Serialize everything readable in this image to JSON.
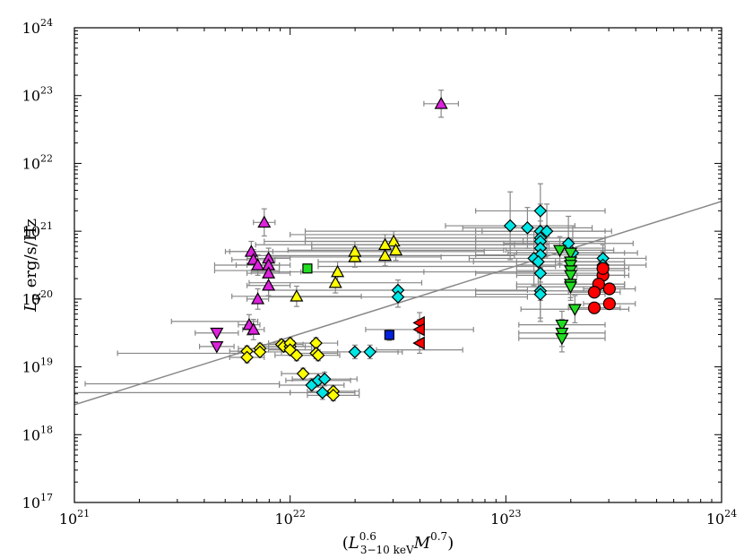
{
  "chart_data": {
    "type": "scatter",
    "title": "",
    "xlabel": "(L_{3-10 keV}^{0.6} M^{0.7})",
    "ylabel": "L_R erg/s/Hz",
    "x_scale": "log",
    "y_scale": "log",
    "xlim": [
      21,
      24
    ],
    "ylim": [
      17,
      24
    ],
    "x_ticks": [
      {
        "base": "10",
        "exp": "21",
        "value": 21
      },
      {
        "base": "10",
        "exp": "22",
        "value": 22
      },
      {
        "base": "10",
        "exp": "23",
        "value": 23
      },
      {
        "base": "10",
        "exp": "24",
        "value": 24
      }
    ],
    "y_ticks": [
      {
        "base": "10",
        "exp": "17",
        "value": 17
      },
      {
        "base": "10",
        "exp": "18",
        "value": 18
      },
      {
        "base": "10",
        "exp": "19",
        "value": 19
      },
      {
        "base": "10",
        "exp": "20",
        "value": 20
      },
      {
        "base": "10",
        "exp": "21",
        "value": 21
      },
      {
        "base": "10",
        "exp": "22",
        "value": 22
      },
      {
        "base": "10",
        "exp": "23",
        "value": 23
      },
      {
        "base": "10",
        "exp": "24",
        "value": 24
      }
    ],
    "axis_titles": {
      "x": {
        "open": "(",
        "L": "L",
        "sup": "0.6",
        "sub": "3−10 keV",
        "M": "M",
        "msup": "0.7",
        "close": ")"
      },
      "y": {
        "L": "L",
        "sub": "R",
        "unit": " erg/s/Hz"
      }
    },
    "fit_line": {
      "x": [
        21,
        24
      ],
      "y": [
        18.44,
        21.44
      ],
      "color": "#888888"
    },
    "series": [
      {
        "name": "magenta-up",
        "marker": "triangle-up",
        "color": "#dd22dd",
        "points": [
          {
            "x": 22.7,
            "y": 22.88,
            "xerr": 0.08,
            "yerr": 0.2
          },
          {
            "x": 21.88,
            "y": 21.13,
            "xerr": 0.05,
            "yerr": 0.2
          },
          {
            "x": 21.82,
            "y": 20.7,
            "xerr": 0.1,
            "yerr": 0.15
          },
          {
            "x": 21.83,
            "y": 20.58,
            "xerr": 0.1,
            "yerr": 0.15
          },
          {
            "x": 21.85,
            "y": 20.5,
            "xerr": 0.1,
            "yerr": 0.15
          },
          {
            "x": 21.9,
            "y": 20.6,
            "xerr": 0.1,
            "yerr": 0.15
          },
          {
            "x": 21.9,
            "y": 20.5,
            "xerr": 0.1,
            "yerr": 0.15
          },
          {
            "x": 21.9,
            "y": 20.38,
            "xerr": 0.1,
            "yerr": 0.15
          },
          {
            "x": 21.9,
            "y": 20.2,
            "xerr": 0.1,
            "yerr": 0.15
          },
          {
            "x": 21.85,
            "y": 20.0,
            "xerr": 0.05,
            "yerr": 0.15
          },
          {
            "x": 21.81,
            "y": 19.62,
            "xerr": 0.05,
            "yerr": 0.15
          },
          {
            "x": 21.83,
            "y": 19.55,
            "xerr": 0.05,
            "yerr": 0.15
          }
        ]
      },
      {
        "name": "magenta-down",
        "marker": "triangle-down",
        "color": "#dd22dd",
        "points": [
          {
            "x": 21.66,
            "y": 19.5,
            "xerr": 0.1,
            "yerr": 0.0
          },
          {
            "x": 21.66,
            "y": 19.3,
            "xerr": 0.08,
            "yerr": 0.0
          }
        ]
      },
      {
        "name": "yellow-up",
        "marker": "triangle-up",
        "color": "#ffff00",
        "points": [
          {
            "x": 22.48,
            "y": 20.85,
            "xerr": 0.6,
            "yerr": 0.15
          },
          {
            "x": 22.44,
            "y": 20.8,
            "xerr": 0.6,
            "yerr": 0.15
          },
          {
            "x": 22.49,
            "y": 20.72,
            "xerr": 0.5,
            "yerr": 0.15
          },
          {
            "x": 22.44,
            "y": 20.64,
            "xerr": 0.6,
            "yerr": 0.15
          },
          {
            "x": 22.3,
            "y": 20.62,
            "xerr": 0.4,
            "yerr": 0.15
          },
          {
            "x": 22.22,
            "y": 20.4,
            "xerr": 0.4,
            "yerr": 0.15
          },
          {
            "x": 22.21,
            "y": 20.24,
            "xerr": 0.4,
            "yerr": 0.15
          },
          {
            "x": 22.03,
            "y": 20.04,
            "xerr": 0.3,
            "yerr": 0.15
          },
          {
            "x": 22.3,
            "y": 20.7,
            "xerr": 0.6,
            "yerr": 0.15
          }
        ]
      },
      {
        "name": "yellow-diamond",
        "marker": "diamond",
        "color": "#ffff00",
        "points": [
          {
            "x": 21.8,
            "y": 19.23,
            "xerr": 0.08,
            "yerr": 0.08
          },
          {
            "x": 21.8,
            "y": 19.14,
            "xerr": 0.08,
            "yerr": 0.08
          },
          {
            "x": 21.86,
            "y": 19.27,
            "xerr": 0.1,
            "yerr": 0.08
          },
          {
            "x": 21.86,
            "y": 19.22,
            "xerr": 0.1,
            "yerr": 0.08
          },
          {
            "x": 21.96,
            "y": 19.33,
            "xerr": 0.1,
            "yerr": 0.08
          },
          {
            "x": 21.97,
            "y": 19.3,
            "xerr": 0.1,
            "yerr": 0.08
          },
          {
            "x": 22.0,
            "y": 19.3,
            "xerr": 0.1,
            "yerr": 0.08
          },
          {
            "x": 22.0,
            "y": 19.35,
            "xerr": 0.1,
            "yerr": 0.08
          },
          {
            "x": 22.0,
            "y": 19.25,
            "xerr": 0.1,
            "yerr": 0.08
          },
          {
            "x": 22.03,
            "y": 19.17,
            "xerr": 0.1,
            "yerr": 0.08
          },
          {
            "x": 22.06,
            "y": 18.9,
            "xerr": 0.1,
            "yerr": 0.08
          },
          {
            "x": 22.12,
            "y": 19.35,
            "xerr": 0.1,
            "yerr": 0.08
          },
          {
            "x": 22.12,
            "y": 19.2,
            "xerr": 0.1,
            "yerr": 0.08
          },
          {
            "x": 22.13,
            "y": 19.17,
            "xerr": 0.1,
            "yerr": 0.08
          },
          {
            "x": 22.2,
            "y": 18.64,
            "xerr": 0.12,
            "yerr": 0.08
          },
          {
            "x": 22.2,
            "y": 18.58,
            "xerr": 0.12,
            "yerr": 0.08
          }
        ]
      },
      {
        "name": "cyan-diamond",
        "marker": "diamond",
        "color": "#00e5e5",
        "points": [
          {
            "x": 23.02,
            "y": 21.08,
            "xerr": 0.3,
            "yerr": 0.5
          },
          {
            "x": 23.1,
            "y": 21.05,
            "xerr": 0.3,
            "yerr": 0.3
          },
          {
            "x": 23.16,
            "y": 21.3,
            "xerr": 0.3,
            "yerr": 0.4
          },
          {
            "x": 23.16,
            "y": 21.0,
            "xerr": 0.3,
            "yerr": 0.4
          },
          {
            "x": 23.16,
            "y": 20.9,
            "xerr": 0.3,
            "yerr": 0.4
          },
          {
            "x": 23.16,
            "y": 20.85,
            "xerr": 0.3,
            "yerr": 0.4
          },
          {
            "x": 23.16,
            "y": 20.75,
            "xerr": 0.3,
            "yerr": 0.4
          },
          {
            "x": 23.16,
            "y": 20.65,
            "xerr": 0.3,
            "yerr": 0.4
          },
          {
            "x": 23.13,
            "y": 20.6,
            "xerr": 0.3,
            "yerr": 0.4
          },
          {
            "x": 23.15,
            "y": 20.55,
            "xerr": 0.3,
            "yerr": 0.4
          },
          {
            "x": 23.16,
            "y": 20.38,
            "xerr": 0.3,
            "yerr": 0.4
          },
          {
            "x": 23.16,
            "y": 20.12,
            "xerr": 0.3,
            "yerr": 0.4
          },
          {
            "x": 23.16,
            "y": 20.07,
            "xerr": 0.3,
            "yerr": 0.4
          },
          {
            "x": 23.19,
            "y": 21.0,
            "xerr": 0.3,
            "yerr": 0.4
          },
          {
            "x": 23.29,
            "y": 20.82,
            "xerr": 0.3,
            "yerr": 0.4
          },
          {
            "x": 23.31,
            "y": 20.68,
            "xerr": 0.3,
            "yerr": 0.4
          },
          {
            "x": 23.45,
            "y": 20.6,
            "xerr": 0.2,
            "yerr": 0.2
          },
          {
            "x": 23.45,
            "y": 20.5,
            "xerr": 0.2,
            "yerr": 0.2
          },
          {
            "x": 22.5,
            "y": 20.13,
            "xerr": 0.6,
            "yerr": 0.15
          },
          {
            "x": 22.5,
            "y": 20.03,
            "xerr": 0.6,
            "yerr": 0.15
          },
          {
            "x": 22.3,
            "y": 19.22,
            "xerr": 0.2,
            "yerr": 0.1
          },
          {
            "x": 22.37,
            "y": 19.22,
            "xerr": 0.15,
            "yerr": 0.1
          },
          {
            "x": 22.1,
            "y": 18.73,
            "xerr": 0.15,
            "yerr": 0.1
          },
          {
            "x": 22.13,
            "y": 18.8,
            "xerr": 0.15,
            "yerr": 0.1
          },
          {
            "x": 22.15,
            "y": 18.62,
            "xerr": 0.15,
            "yerr": 0.1
          },
          {
            "x": 22.16,
            "y": 18.82,
            "xerr": 0.15,
            "yerr": 0.1
          }
        ]
      },
      {
        "name": "green-down",
        "marker": "triangle-down",
        "color": "#22dd22",
        "points": [
          {
            "x": 23.25,
            "y": 20.72,
            "xerr": 0.25,
            "yerr": 0.2
          },
          {
            "x": 23.3,
            "y": 20.68,
            "xerr": 0.25,
            "yerr": 0.2
          },
          {
            "x": 23.3,
            "y": 20.55,
            "xerr": 0.25,
            "yerr": 0.2
          },
          {
            "x": 23.3,
            "y": 20.5,
            "xerr": 0.25,
            "yerr": 0.2
          },
          {
            "x": 23.3,
            "y": 20.42,
            "xerr": 0.25,
            "yerr": 0.2
          },
          {
            "x": 23.3,
            "y": 20.35,
            "xerr": 0.25,
            "yerr": 0.2
          },
          {
            "x": 23.3,
            "y": 20.22,
            "xerr": 0.25,
            "yerr": 0.2
          },
          {
            "x": 23.3,
            "y": 20.18,
            "xerr": 0.25,
            "yerr": 0.2
          },
          {
            "x": 23.32,
            "y": 19.85,
            "xerr": 0.25,
            "yerr": 0.2
          },
          {
            "x": 23.26,
            "y": 19.62,
            "xerr": 0.2,
            "yerr": 0.2
          },
          {
            "x": 23.26,
            "y": 19.5,
            "xerr": 0.2,
            "yerr": 0.2
          },
          {
            "x": 23.26,
            "y": 19.42,
            "xerr": 0.2,
            "yerr": 0.2
          }
        ]
      },
      {
        "name": "red-circle",
        "marker": "circle",
        "color": "#ff0000",
        "points": [
          {
            "x": 23.45,
            "y": 20.35,
            "xerr": 0.12,
            "yerr": 0.08
          },
          {
            "x": 23.45,
            "y": 20.45,
            "xerr": 0.12,
            "yerr": 0.08
          },
          {
            "x": 23.43,
            "y": 20.22,
            "xerr": 0.12,
            "yerr": 0.08
          },
          {
            "x": 23.41,
            "y": 20.1,
            "xerr": 0.12,
            "yerr": 0.08
          },
          {
            "x": 23.48,
            "y": 20.15,
            "xerr": 0.12,
            "yerr": 0.08
          },
          {
            "x": 23.48,
            "y": 19.93,
            "xerr": 0.12,
            "yerr": 0.08
          },
          {
            "x": 23.41,
            "y": 19.87,
            "xerr": 0.12,
            "yerr": 0.08
          }
        ]
      },
      {
        "name": "red-left",
        "marker": "triangle-left",
        "color": "#ff0000",
        "points": [
          {
            "x": 22.6,
            "y": 19.65,
            "xerr": 0.0,
            "yerr": 0.15
          },
          {
            "x": 22.6,
            "y": 19.55,
            "xerr": 0.0,
            "yerr": 0.15
          },
          {
            "x": 22.6,
            "y": 19.35,
            "xerr": 0.0,
            "yerr": 0.15
          }
        ]
      },
      {
        "name": "green-square",
        "marker": "square",
        "color": "#22dd22",
        "points": [
          {
            "x": 22.08,
            "y": 20.45,
            "xerr": 0.0,
            "yerr": 0.0
          }
        ]
      },
      {
        "name": "blue-square",
        "marker": "square",
        "color": "#0022dd",
        "points": [
          {
            "x": 22.46,
            "y": 19.47,
            "xerr": 0.0,
            "yerr": 0.08
          }
        ]
      },
      {
        "name": "gray-upper-limits",
        "marker": "none",
        "color": "#888888",
        "points": [
          {
            "x": 22.62,
            "y": 21.0,
            "xerr": 0.55,
            "yerr": 0.0
          },
          {
            "x": 22.6,
            "y": 20.95,
            "xerr": 0.6,
            "yerr": 0.0
          },
          {
            "x": 22.62,
            "y": 20.9,
            "xerr": 0.55,
            "yerr": 0.0
          },
          {
            "x": 22.62,
            "y": 20.85,
            "xerr": 0.55,
            "yerr": 0.0
          },
          {
            "x": 22.65,
            "y": 20.8,
            "xerr": 0.55,
            "yerr": 0.0
          },
          {
            "x": 22.65,
            "y": 20.75,
            "xerr": 0.55,
            "yerr": 0.0
          },
          {
            "x": 22.68,
            "y": 20.55,
            "xerr": 0.55,
            "yerr": 0.0
          },
          {
            "x": 22.68,
            "y": 20.48,
            "xerr": 0.55,
            "yerr": 0.0
          },
          {
            "x": 22.6,
            "y": 20.4,
            "xerr": 0.55,
            "yerr": 0.0
          },
          {
            "x": 21.8,
            "y": 20.5,
            "xerr": 0.15,
            "yerr": 0.0
          },
          {
            "x": 21.8,
            "y": 20.42,
            "xerr": 0.15,
            "yerr": 0.0
          },
          {
            "x": 21.65,
            "y": 19.67,
            "xerr": 0.2,
            "yerr": 0.0
          },
          {
            "x": 21.5,
            "y": 19.2,
            "xerr": 0.3,
            "yerr": 0.0
          },
          {
            "x": 21.5,
            "y": 18.75,
            "xerr": 0.45,
            "yerr": 0.0
          },
          {
            "x": 21.5,
            "y": 18.62,
            "xerr": 0.5,
            "yerr": 0.0
          },
          {
            "x": 22.6,
            "y": 19.25,
            "xerr": 0.2,
            "yerr": 0.0
          },
          {
            "x": 22.6,
            "y": 19.55,
            "xerr": 0.25,
            "yerr": 0.0
          }
        ]
      }
    ]
  }
}
